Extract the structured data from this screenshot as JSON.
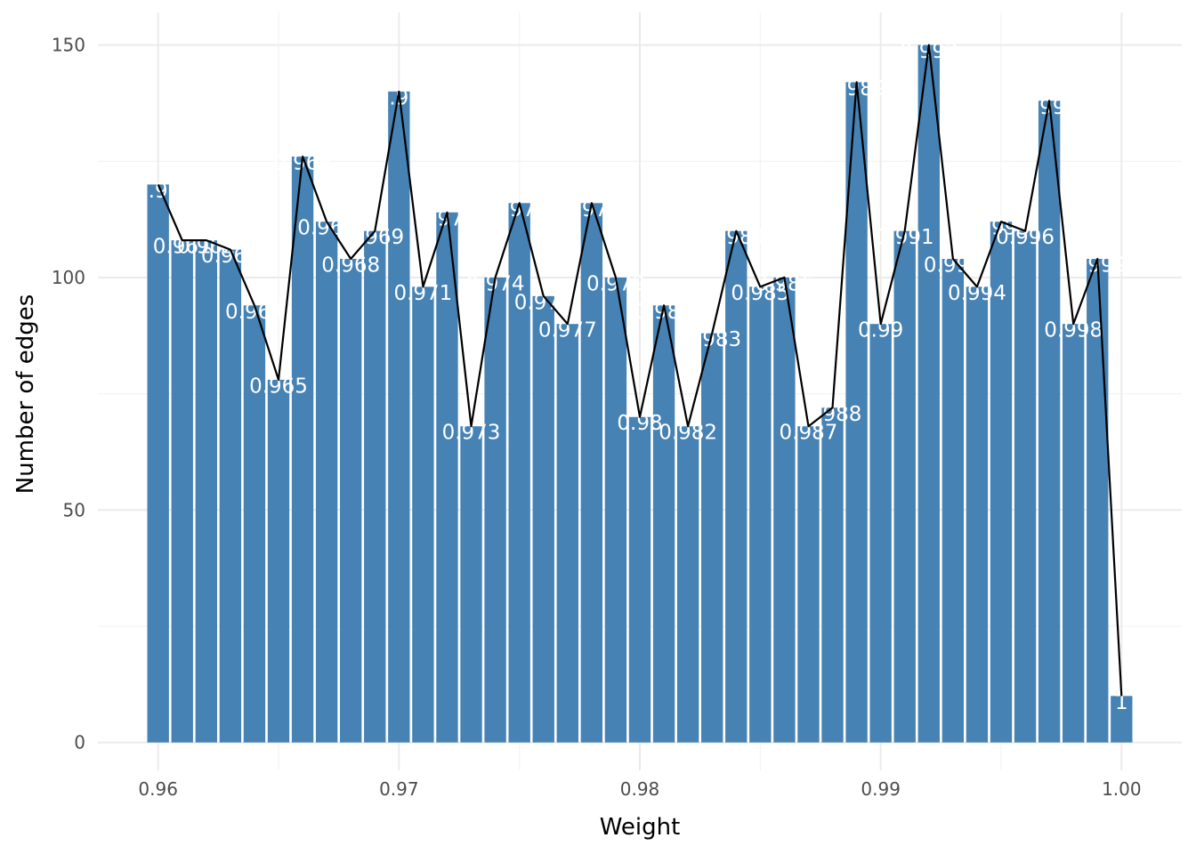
{
  "chart_data": {
    "type": "bar",
    "xlabel": "Weight",
    "ylabel": "Number of edges",
    "xlim": [
      0.9575,
      1.0025
    ],
    "ylim": [
      -6,
      157
    ],
    "x_ticks": [
      0.96,
      0.97,
      0.98,
      0.99,
      1.0
    ],
    "x_tick_labels": [
      "0.96",
      "0.97",
      "0.98",
      "0.99",
      "1.00"
    ],
    "y_ticks": [
      0,
      50,
      100,
      150
    ],
    "y_tick_labels": [
      "0",
      "50",
      "100",
      "150"
    ],
    "grid": true,
    "bar_color": "#4682B4",
    "line_color": "#000000",
    "x": [
      0.96,
      0.961,
      0.962,
      0.963,
      0.964,
      0.965,
      0.966,
      0.967,
      0.968,
      0.969,
      0.97,
      0.971,
      0.972,
      0.973,
      0.974,
      0.975,
      0.976,
      0.977,
      0.978,
      0.979,
      0.98,
      0.981,
      0.982,
      0.983,
      0.984,
      0.985,
      0.986,
      0.987,
      0.988,
      0.989,
      0.99,
      0.991,
      0.992,
      0.993,
      0.994,
      0.995,
      0.996,
      0.997,
      0.998,
      0.999,
      1.0
    ],
    "values": [
      120,
      108,
      108,
      106,
      94,
      78,
      126,
      112,
      104,
      110,
      140,
      98,
      114,
      68,
      100,
      116,
      96,
      90,
      116,
      100,
      70,
      94,
      68,
      88,
      110,
      98,
      100,
      68,
      72,
      142,
      90,
      110,
      150,
      104,
      98,
      112,
      110,
      138,
      90,
      104,
      10
    ],
    "labels": [
      "0.96",
      "0.961",
      "0.962",
      "0.963",
      "0.964",
      "0.965",
      "0.966",
      "0.967",
      "0.968",
      "0.969",
      "0.97",
      "0.971",
      "0.972",
      "0.973",
      "0.974",
      "0.975",
      "0.976",
      "0.977",
      "0.978",
      "0.979",
      "0.98",
      "0.981",
      "0.982",
      "0.983",
      "0.984",
      "0.985",
      "0.986",
      "0.987",
      "0.988",
      "0.989",
      "0.99",
      "0.991",
      "0.992",
      "0.993",
      "0.994",
      "0.995",
      "0.996",
      "0.997",
      "0.998",
      "0.999",
      "1"
    ]
  }
}
